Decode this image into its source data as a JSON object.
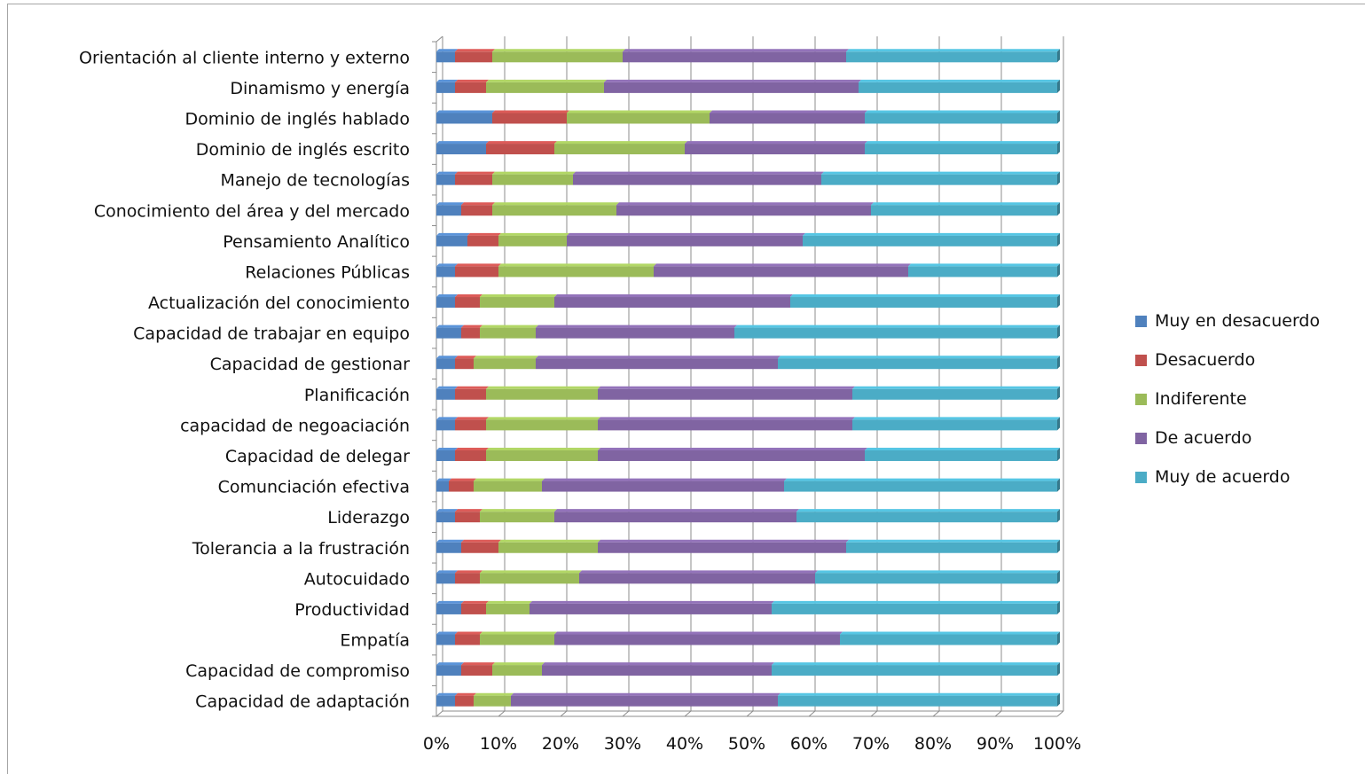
{
  "chart_data": {
    "type": "bar",
    "orientation": "horizontal",
    "stacking": "percent",
    "categories": [
      "Orientación al cliente interno y externo",
      "Dinamismo y energía",
      "Dominio de inglés hablado",
      "Dominio de inglés escrito",
      "Manejo de tecnologías",
      "Conocimiento del área y del mercado",
      "Pensamiento Analítico",
      "Relaciones Públicas",
      "Actualización del conocimiento",
      "Capacidad de trabajar en equipo",
      "Capacidad de gestionar",
      "Planificación",
      "capacidad de negoaciación",
      "Capacidad de delegar",
      "Comunciación efectiva",
      "Liderazgo",
      "Tolerancia a la frustración",
      "Autocuidado",
      "Productividad",
      "Empatía",
      "Capacidad de compromiso",
      "Capacidad de adaptación"
    ],
    "series": [
      {
        "name": "Muy en desacuerdo",
        "color": "#4f81bd",
        "values": [
          3,
          3,
          9,
          8,
          3,
          4,
          5,
          3,
          3,
          4,
          3,
          3,
          3,
          3,
          2,
          3,
          4,
          3,
          4,
          3,
          4,
          3
        ]
      },
      {
        "name": "Desacuerdo",
        "color": "#c0504d",
        "values": [
          6,
          5,
          12,
          11,
          6,
          5,
          5,
          7,
          4,
          3,
          3,
          5,
          5,
          5,
          4,
          4,
          6,
          4,
          4,
          4,
          5,
          3
        ]
      },
      {
        "name": "Indiferente",
        "color": "#9bbb59",
        "values": [
          21,
          19,
          23,
          21,
          13,
          20,
          11,
          25,
          12,
          9,
          10,
          18,
          18,
          18,
          11,
          12,
          16,
          16,
          7,
          12,
          8,
          6
        ]
      },
      {
        "name": "De acuerdo",
        "color": "#8064a2",
        "values": [
          36,
          41,
          25,
          29,
          40,
          41,
          38,
          41,
          38,
          32,
          39,
          41,
          41,
          43,
          39,
          39,
          40,
          38,
          39,
          46,
          37,
          43
        ]
      },
      {
        "name": "Muy de acuerdo",
        "color": "#4bacc6",
        "values": [
          34,
          32,
          31,
          31,
          38,
          30,
          41,
          24,
          43,
          52,
          45,
          33,
          33,
          31,
          44,
          42,
          34,
          39,
          46,
          35,
          46,
          45
        ]
      }
    ],
    "x_ticks": [
      "0%",
      "10%",
      "20%",
      "30%",
      "40%",
      "50%",
      "60%",
      "70%",
      "80%",
      "90%",
      "100%"
    ],
    "xlim": [
      0,
      100
    ],
    "grid": true,
    "legend_position": "right"
  }
}
